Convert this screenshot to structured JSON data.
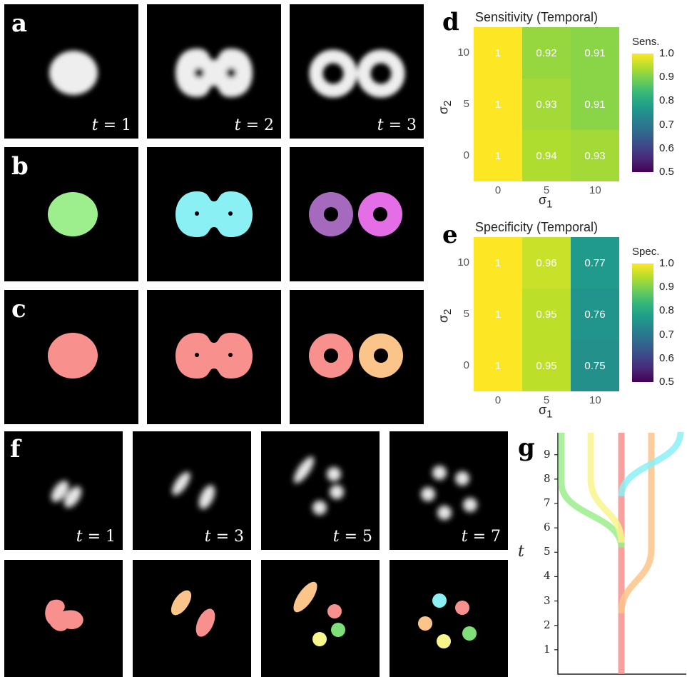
{
  "panel_labels": {
    "a": "a",
    "b": "b",
    "c": "c",
    "d": "d",
    "e": "e",
    "f": "f",
    "g": "g"
  },
  "time_labels": {
    "var": "t",
    "a": [
      "= 1",
      "= 2",
      "= 3"
    ],
    "f": [
      "= 1",
      "= 3",
      "= 5",
      "= 7"
    ]
  },
  "colors": {
    "green": "#9cef8c",
    "cyan": "#8bf0f3",
    "purple": "#a569bd",
    "magenta": "#e36ee6",
    "salmon": "#f8908d",
    "peach": "#fbc48a",
    "yellow": "#f8f58c",
    "lime": "#7fe07a"
  },
  "chart_data": [
    {
      "type": "heatmap",
      "title": "Sensitivity (Temporal)",
      "xlabel": "σ1",
      "ylabel": "σ2",
      "x": [
        "0",
        "5",
        "10"
      ],
      "y": [
        "0",
        "5",
        "10"
      ],
      "values": [
        [
          1,
          0.94,
          0.93
        ],
        [
          1,
          0.93,
          0.91
        ],
        [
          1,
          0.92,
          0.91
        ]
      ],
      "legend_title": "Sens.",
      "colorbar_ticks": [
        "1.0",
        "0.9",
        "0.8",
        "0.7",
        "0.6",
        "0.5"
      ],
      "colorbar_range": [
        0.5,
        1.0
      ]
    },
    {
      "type": "heatmap",
      "title": "Specificity (Temporal)",
      "xlabel": "σ1",
      "ylabel": "σ2",
      "x": [
        "0",
        "5",
        "10"
      ],
      "y": [
        "0",
        "5",
        "10"
      ],
      "values": [
        [
          1,
          0.95,
          0.75
        ],
        [
          1,
          0.95,
          0.76
        ],
        [
          1,
          0.96,
          0.77
        ]
      ],
      "legend_title": "Spec.",
      "colorbar_ticks": [
        "1.0",
        "0.9",
        "0.8",
        "0.7",
        "0.6",
        "0.5"
      ],
      "colorbar_range": [
        0.5,
        1.0
      ]
    },
    {
      "type": "line",
      "ylabel": "t",
      "yticks": [
        "1",
        "2",
        "3",
        "4",
        "5",
        "6",
        "7",
        "8",
        "9"
      ],
      "ylim": [
        0,
        9.9
      ],
      "lineages": [
        {
          "color": "#f8908d",
          "t_start": 0,
          "t_split": null
        },
        {
          "color": "#fbc48a",
          "t_start": 2.5,
          "t_split": 2.5
        },
        {
          "color": "#9cef8c",
          "t_start": 5.2,
          "t_split": 5.2
        },
        {
          "color": "#f8f58c",
          "t_start": 5.4,
          "t_split": 5.4
        },
        {
          "color": "#8bf0f3",
          "t_start": 7.3,
          "t_split": 7.3
        }
      ]
    }
  ]
}
